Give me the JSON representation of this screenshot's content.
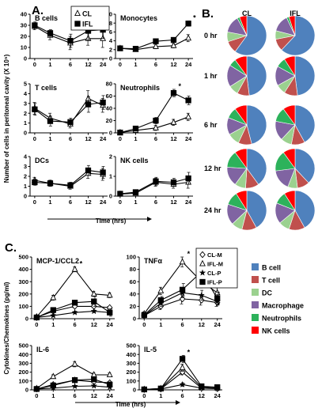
{
  "panel_labels": [
    "A.",
    "B.",
    "C."
  ],
  "chart_data": [
    {
      "type": "line",
      "panel": "A",
      "title": "B cells",
      "x": [
        "0",
        "1",
        "6",
        "12",
        "24"
      ],
      "ylim": [
        0,
        40
      ],
      "yticks": [
        "0",
        "10",
        "20",
        "30",
        "40"
      ],
      "series": [
        {
          "name": "CL",
          "marker": "open-triangle",
          "values": [
            29,
            21,
            14,
            18,
            18
          ],
          "err": [
            3,
            4,
            6,
            6,
            8
          ]
        },
        {
          "name": "IFL",
          "marker": "filled-square",
          "values": [
            30,
            23,
            16,
            25,
            26
          ],
          "err": [
            3,
            3,
            6,
            8,
            8
          ]
        }
      ],
      "legend": [
        "CL",
        "IFL"
      ],
      "y_axis_label": "Number of cells in peritoneal cavity (X 10⁵)"
    },
    {
      "type": "line",
      "panel": "A",
      "title": "Monocytes",
      "x": [
        "0",
        "1",
        "6",
        "12",
        "24"
      ],
      "ylim": [
        0,
        10
      ],
      "yticks": [
        "0",
        "2",
        "4",
        "6",
        "8",
        "10"
      ],
      "series": [
        {
          "name": "CL",
          "values": [
            2.3,
            2.0,
            2.7,
            2.9,
            4.6
          ],
          "err": [
            0.3,
            0.3,
            0.5,
            0.5,
            0.8
          ]
        },
        {
          "name": "IFL",
          "values": [
            2.3,
            2.2,
            3.9,
            4.2,
            7.9
          ],
          "err": [
            0.3,
            0.3,
            0.5,
            0.5,
            0.6
          ]
        }
      ],
      "annotation": "*"
    },
    {
      "type": "line",
      "panel": "A",
      "title": "T cells",
      "x": [
        "0",
        "1",
        "6",
        "12",
        "24"
      ],
      "ylim": [
        0,
        5
      ],
      "yticks": [
        "0",
        "1",
        "2",
        "3",
        "4",
        "5"
      ],
      "series": [
        {
          "name": "CL",
          "values": [
            2.5,
            1.5,
            0.9,
            3.5,
            2.8
          ],
          "err": [
            0.6,
            0.5,
            0.4,
            0.8,
            0.7
          ]
        },
        {
          "name": "IFL",
          "values": [
            2.4,
            1.2,
            1.1,
            2.9,
            3.1
          ],
          "err": [
            0.6,
            0.5,
            0.4,
            0.8,
            0.7
          ]
        }
      ]
    },
    {
      "type": "line",
      "panel": "A",
      "title": "Neutrophils",
      "x": [
        "0",
        "1",
        "6",
        "12",
        "24"
      ],
      "ylim": [
        0,
        80
      ],
      "yticks": [
        "0",
        "20",
        "40",
        "60",
        "80"
      ],
      "series": [
        {
          "name": "CL",
          "values": [
            0.5,
            4,
            8,
            17,
            26
          ],
          "err": [
            0.5,
            2,
            4,
            5,
            6
          ]
        },
        {
          "name": "IFL",
          "values": [
            0.5,
            7,
            20,
            65,
            53
          ],
          "err": [
            0.5,
            2,
            5,
            6,
            7
          ]
        }
      ],
      "annotation": "*"
    },
    {
      "type": "line",
      "panel": "A",
      "title": "DCs",
      "x": [
        "0",
        "1",
        "6",
        "12",
        "24"
      ],
      "ylim": [
        0,
        4
      ],
      "yticks": [
        "0",
        "1",
        "2",
        "3",
        "4"
      ],
      "series": [
        {
          "name": "CL",
          "values": [
            1.6,
            1.3,
            1.0,
            2.3,
            2.2
          ],
          "err": [
            0.3,
            0.3,
            0.3,
            0.5,
            0.6
          ]
        },
        {
          "name": "IFL",
          "values": [
            1.4,
            1.3,
            1.1,
            2.6,
            2.4
          ],
          "err": [
            0.3,
            0.3,
            0.3,
            0.5,
            0.6
          ]
        }
      ]
    },
    {
      "type": "line",
      "panel": "A",
      "title": "NK cells",
      "x": [
        "0",
        "1",
        "6",
        "12",
        "24"
      ],
      "ylim": [
        0,
        2
      ],
      "yticks": [
        "0",
        "1",
        "2"
      ],
      "series": [
        {
          "name": "CL",
          "values": [
            0.1,
            0.15,
            0.7,
            0.6,
            0.7
          ],
          "err": [
            0.05,
            0.05,
            0.2,
            0.2,
            0.3
          ]
        },
        {
          "name": "IFL",
          "values": [
            0.12,
            0.2,
            0.75,
            0.7,
            0.9
          ],
          "err": [
            0.05,
            0.05,
            0.2,
            0.2,
            0.3
          ]
        }
      ]
    },
    {
      "type": "pie",
      "panel": "B",
      "columns": [
        "CL",
        "IFL"
      ],
      "rows": [
        "0 hr",
        "1 hr",
        "6 hr",
        "12 hr",
        "24 hr"
      ],
      "categories": [
        "B cell",
        "T cell",
        "DC",
        "Macrophage",
        "Neutrophils",
        "NK cells"
      ],
      "colors": [
        "#4f81bd",
        "#c0504d",
        "#9bd18f",
        "#8064a2",
        "#2db25b",
        "#ff0000"
      ],
      "values": [
        [
          [
            60,
            10,
            8,
            14,
            2,
            6
          ],
          [
            62,
            10,
            7,
            14,
            2,
            5
          ]
        ],
        [
          [
            48,
            10,
            8,
            18,
            6,
            10
          ],
          [
            48,
            11,
            8,
            16,
            8,
            9
          ]
        ],
        [
          [
            46,
            11,
            10,
            14,
            9,
            10
          ],
          [
            42,
            11,
            9,
            16,
            12,
            10
          ]
        ],
        [
          [
            40,
            11,
            9,
            16,
            14,
            10
          ],
          [
            38,
            10,
            8,
            17,
            17,
            10
          ]
        ],
        [
          [
            42,
            12,
            9,
            17,
            11,
            9
          ],
          [
            42,
            13,
            9,
            17,
            10,
            9
          ]
        ]
      ],
      "legend": [
        "B cell",
        "T cell",
        "DC",
        "Macrophage",
        "Neutrophils",
        "NK cells"
      ]
    },
    {
      "type": "line",
      "panel": "C",
      "title": "MCP-1/CCL2",
      "x": [
        "0",
        "1",
        "6",
        "12",
        "24"
      ],
      "ylim": [
        0,
        500
      ],
      "yticks": [
        "0",
        "100",
        "200",
        "300",
        "400",
        "500"
      ],
      "series": [
        {
          "name": "CL-M",
          "values": [
            10,
            60,
            100,
            100,
            90
          ],
          "err": [
            5,
            10,
            10,
            10,
            10
          ]
        },
        {
          "name": "IFL-M",
          "values": [
            15,
            170,
            400,
            200,
            190
          ],
          "err": [
            5,
            20,
            20,
            20,
            20
          ]
        },
        {
          "name": "CL-P",
          "values": [
            10,
            25,
            50,
            60,
            50
          ],
          "err": [
            5,
            10,
            10,
            10,
            10
          ]
        },
        {
          "name": "IFL-P",
          "values": [
            10,
            70,
            130,
            140,
            50
          ],
          "err": [
            5,
            10,
            20,
            40,
            30
          ]
        }
      ],
      "annotation": "*"
    },
    {
      "type": "line",
      "panel": "C",
      "title": "TNFα",
      "x": [
        "0",
        "1",
        "6",
        "12",
        "24"
      ],
      "ylim": [
        0,
        100
      ],
      "yticks": [
        "0",
        "20",
        "40",
        "60",
        "80",
        "100"
      ],
      "series": [
        {
          "name": "CL-M",
          "values": [
            5,
            20,
            32,
            30,
            26
          ],
          "err": [
            2,
            5,
            8,
            8,
            6
          ]
        },
        {
          "name": "IFL-M",
          "values": [
            8,
            45,
            92,
            60,
            42
          ],
          "err": [
            3,
            6,
            8,
            10,
            8
          ]
        },
        {
          "name": "CL-P",
          "values": [
            5,
            25,
            42,
            38,
            28
          ],
          "err": [
            2,
            5,
            8,
            8,
            6
          ]
        },
        {
          "name": "IFL-P",
          "values": [
            6,
            30,
            47,
            76,
            33
          ],
          "err": [
            2,
            6,
            10,
            15,
            10
          ]
        }
      ],
      "annotation": "*"
    },
    {
      "type": "line",
      "panel": "C",
      "title": "IL-6",
      "x": [
        "0",
        "1",
        "6",
        "12",
        "24"
      ],
      "ylim": [
        0,
        500
      ],
      "yticks": [
        "0",
        "100",
        "200",
        "300",
        "400",
        "500"
      ],
      "series": [
        {
          "name": "CL-M",
          "values": [
            10,
            60,
            110,
            90,
            80
          ],
          "err": [
            5,
            10,
            15,
            10,
            10
          ]
        },
        {
          "name": "IFL-M",
          "values": [
            15,
            150,
            290,
            170,
            170
          ],
          "err": [
            5,
            20,
            30,
            20,
            20
          ]
        },
        {
          "name": "CL-P",
          "values": [
            10,
            20,
            40,
            45,
            30
          ],
          "err": [
            5,
            5,
            10,
            10,
            5
          ]
        },
        {
          "name": "IFL-P",
          "values": [
            10,
            50,
            110,
            120,
            60
          ],
          "err": [
            5,
            10,
            15,
            15,
            10
          ]
        }
      ]
    },
    {
      "type": "line",
      "panel": "C",
      "title": "IL-5",
      "x": [
        "0",
        "1",
        "6",
        "12",
        "24"
      ],
      "ylim": [
        0,
        500
      ],
      "yticks": [
        "0",
        "100",
        "200",
        "300",
        "400",
        "500"
      ],
      "series": [
        {
          "name": "CL-M",
          "values": [
            5,
            10,
            200,
            20,
            15
          ],
          "err": [
            2,
            5,
            30,
            5,
            5
          ]
        },
        {
          "name": "IFL-M",
          "values": [
            5,
            15,
            250,
            30,
            20
          ],
          "err": [
            2,
            5,
            40,
            5,
            5
          ]
        },
        {
          "name": "CL-P",
          "values": [
            5,
            10,
            60,
            20,
            15
          ],
          "err": [
            2,
            5,
            20,
            5,
            5
          ]
        },
        {
          "name": "IFL-P",
          "values": [
            5,
            15,
            350,
            40,
            30
          ],
          "err": [
            2,
            5,
            40,
            10,
            5
          ]
        }
      ],
      "annotation": "*",
      "legend": [
        "CL-M",
        "IFL-M",
        "CL-P",
        "IFL-P"
      ]
    }
  ],
  "axis_text": {
    "a_x_label": "Time (hrs)",
    "a_y_label": "Number of cells in peritoneal cavity (X 10⁵)",
    "c_x_label": "Time (hrs)",
    "c_y_label": "Cytokines/Chemokines (pg/ml)"
  },
  "colors": {
    "blue": "#4f81bd",
    "red": "#c0504d",
    "lightgreen": "#9bd18f",
    "purple": "#8064a2",
    "green": "#2db25b",
    "nk": "#ff0000"
  }
}
